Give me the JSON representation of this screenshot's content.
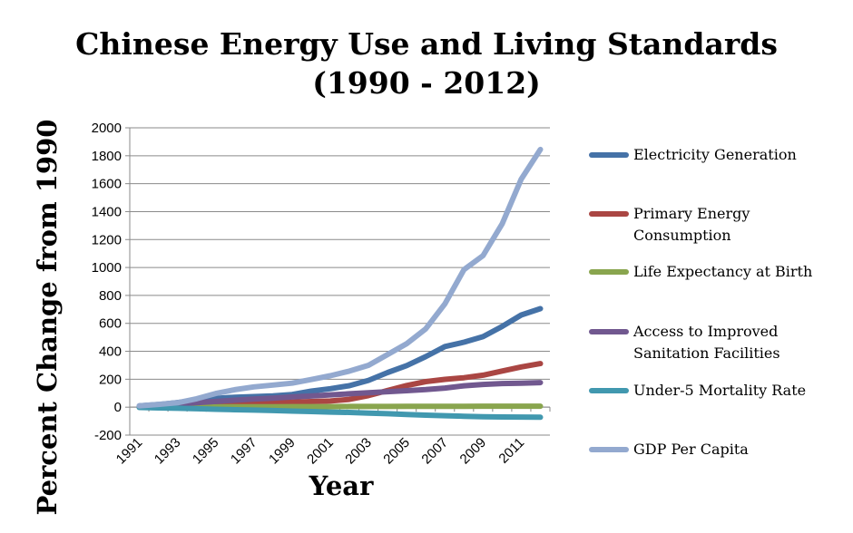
{
  "chart_data": {
    "type": "line",
    "title_line1": "Chinese Energy Use and Living Standards",
    "title_line2": "(1990 - 2012)",
    "xlabel": "Year",
    "ylabel": "Percent Change from 1990",
    "ylim": [
      -200,
      2000
    ],
    "y_ticks": [
      -200,
      0,
      200,
      400,
      600,
      800,
      1000,
      1200,
      1400,
      1600,
      1800,
      2000
    ],
    "x_tick_labels": [
      "1991",
      "1993",
      "1995",
      "1997",
      "1999",
      "2001",
      "2003",
      "2005",
      "2007",
      "2009",
      "2011"
    ],
    "x": [
      1991,
      1992,
      1993,
      1994,
      1995,
      1996,
      1997,
      1998,
      1999,
      2000,
      2001,
      2002,
      2003,
      2004,
      2005,
      2006,
      2007,
      2008,
      2009,
      2010,
      2011,
      2012
    ],
    "grid": true,
    "legend_position": "right",
    "series": [
      {
        "name": "Electricity Generation",
        "color": "#4572A7",
        "values": [
          9,
          19,
          33,
          50,
          63,
          71,
          76,
          81,
          91,
          115,
          132,
          154,
          192,
          248,
          298,
          362,
          434,
          465,
          505,
          578,
          660,
          705
        ]
      },
      {
        "name": "Primary Energy Consumption",
        "color": "#AA4643",
        "values": [
          5,
          10,
          16,
          24,
          32,
          38,
          39,
          38,
          36,
          40,
          44,
          56,
          83,
          119,
          155,
          183,
          199,
          211,
          229,
          259,
          288,
          312
        ]
      },
      {
        "name": "Life Expectancy at Birth",
        "color": "#89A54E",
        "values": [
          0,
          1,
          1,
          2,
          2,
          3,
          3,
          3,
          4,
          4,
          4,
          5,
          5,
          5,
          6,
          6,
          6,
          6,
          7,
          7,
          7,
          7
        ]
      },
      {
        "name": "Access to Improved Sanitation Facilities",
        "color": "#71588F",
        "values": [
          5,
          13,
          22,
          32,
          41,
          50,
          58,
          65,
          73,
          80,
          88,
          96,
          103,
          111,
          118,
          126,
          137,
          153,
          163,
          169,
          172,
          176
        ]
      },
      {
        "name": "Under-5 Mortality Rate",
        "color": "#4198AF",
        "values": [
          -2,
          -5,
          -8,
          -11,
          -15,
          -18,
          -21,
          -24,
          -28,
          -31,
          -35,
          -38,
          -42,
          -47,
          -52,
          -57,
          -61,
          -65,
          -68,
          -70,
          -71,
          -72
        ]
      },
      {
        "name": "GDP Per Capita",
        "color": "#93A9CF",
        "values": [
          9,
          20,
          32,
          60,
          98,
          125,
          145,
          158,
          172,
          198,
          225,
          258,
          300,
          377,
          455,
          561,
          740,
          985,
          1085,
          1313,
          1633,
          1845
        ]
      }
    ]
  }
}
